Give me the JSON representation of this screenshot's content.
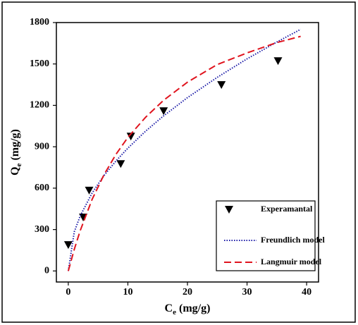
{
  "chart_data": {
    "type": "scatter",
    "xlabel": {
      "main": "C",
      "sub": "e",
      "unit": " (mg/g)"
    },
    "ylabel": {
      "main": "Q",
      "sub": "e",
      "unit": " (mg/g)"
    },
    "xlim": [
      -2,
      42
    ],
    "xticks": [
      0,
      10,
      20,
      30,
      40
    ],
    "ylim": [
      -80,
      1800
    ],
    "yticks": [
      0,
      300,
      600,
      900,
      1200,
      1500,
      1800
    ],
    "legend": "lower right",
    "series": [
      {
        "name": "Experamantal",
        "type": "scatter",
        "color": "#000000",
        "x": [
          0,
          2.5,
          3.5,
          8.8,
          10.5,
          16,
          25.7,
          35.2
        ],
        "y": [
          190,
          390,
          585,
          777,
          976,
          1160,
          1350,
          1523
        ]
      },
      {
        "name": "Freundlich model",
        "type": "line",
        "style": "dotted",
        "color": "#1c1ca8",
        "x": [
          0,
          1,
          2,
          4,
          6,
          8,
          10,
          13,
          16,
          20,
          25,
          30,
          35,
          39
        ],
        "y": [
          0,
          283,
          399,
          565,
          692,
          797,
          890,
          1014,
          1124,
          1256,
          1403,
          1537,
          1659,
          1751
        ]
      },
      {
        "name": "Langmuir model",
        "type": "line",
        "style": "dashed",
        "color": "#e0141e",
        "x": [
          0,
          1,
          2,
          4,
          6,
          8,
          10,
          13,
          16,
          20,
          25,
          30,
          35,
          39
        ],
        "y": [
          0,
          156,
          292,
          519,
          698,
          845,
          968,
          1115,
          1237,
          1368,
          1496,
          1580,
          1655,
          1700
        ]
      }
    ]
  }
}
